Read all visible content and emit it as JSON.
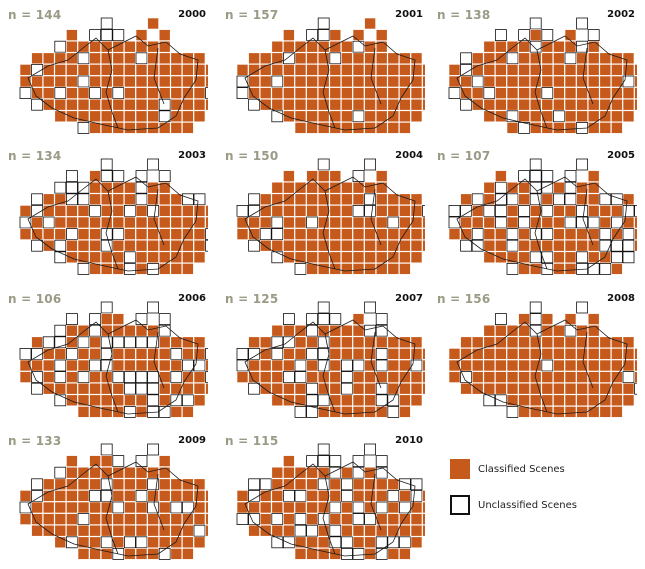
{
  "panels": [
    {
      "year": "2000",
      "n_label": "n = 144",
      "n": 144
    },
    {
      "year": "2001",
      "n_label": "n = 157",
      "n": 157
    },
    {
      "year": "2002",
      "n_label": "n = 138",
      "n": 138
    },
    {
      "year": "2003",
      "n_label": "n = 134",
      "n": 134
    },
    {
      "year": "2004",
      "n_label": "n = 150",
      "n": 150
    },
    {
      "year": "2005",
      "n_label": "n = 107",
      "n": 107
    },
    {
      "year": "2006",
      "n_label": "n = 106",
      "n": 106
    },
    {
      "year": "2007",
      "n_label": "n = 125",
      "n": 125
    },
    {
      "year": "2008",
      "n_label": "n = 156",
      "n": 156
    },
    {
      "year": "2009",
      "n_label": "n = 133",
      "n": 133
    },
    {
      "year": "2010",
      "n_label": "n = 115",
      "n": 115
    }
  ],
  "legend": {
    "classified_label": "Classified Scenes",
    "unclassified_label": "Unclassified Scenes"
  },
  "colors": {
    "classified": "#c65a1c",
    "unclassified": "#ffffff",
    "outline": "#111111",
    "count_text": "#9a9a86"
  }
}
